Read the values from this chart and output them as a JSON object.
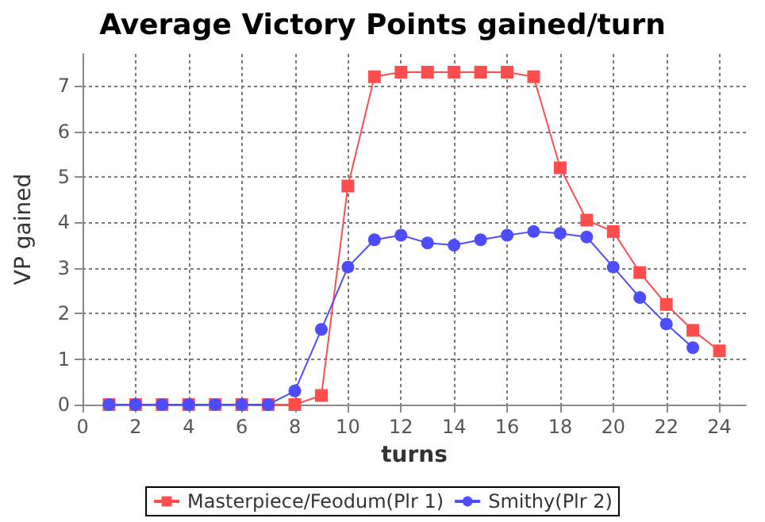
{
  "chart_data": {
    "type": "line",
    "title": "Average Victory Points gained/turn",
    "xlabel": "turns",
    "ylabel": "VP gained",
    "x": [
      1,
      2,
      3,
      4,
      5,
      6,
      7,
      8,
      9,
      10,
      11,
      12,
      13,
      14,
      15,
      16,
      17,
      18,
      19,
      20,
      21,
      22,
      23,
      24
    ],
    "series": [
      {
        "name": "Masterpiece/Feodum(Plr 1)",
        "color": "#ff4d4d",
        "marker": "square",
        "values": [
          0,
          0,
          0,
          0,
          0,
          0,
          0,
          0,
          0.2,
          4.8,
          7.2,
          7.3,
          7.3,
          7.3,
          7.3,
          7.3,
          7.2,
          5.2,
          4.05,
          3.8,
          2.9,
          2.2,
          1.63,
          1.18
        ]
      },
      {
        "name": "Smithy(Plr 2)",
        "color": "#4d4dff",
        "marker": "circle",
        "values": [
          0,
          0,
          0,
          0,
          0,
          0,
          0,
          0.3,
          1.65,
          3.02,
          3.62,
          3.72,
          3.55,
          3.5,
          3.62,
          3.72,
          3.8,
          3.76,
          3.68,
          3.02,
          2.35,
          1.77,
          1.25,
          null
        ]
      }
    ],
    "xlim": [
      0,
      25
    ],
    "xticks": [
      0,
      2,
      4,
      6,
      8,
      10,
      12,
      14,
      16,
      18,
      20,
      22,
      24
    ],
    "ylim": [
      0,
      7.7
    ],
    "yticks": [
      0,
      1,
      2,
      3,
      4,
      5,
      6,
      7
    ],
    "grid": true,
    "legend": "bottom"
  }
}
